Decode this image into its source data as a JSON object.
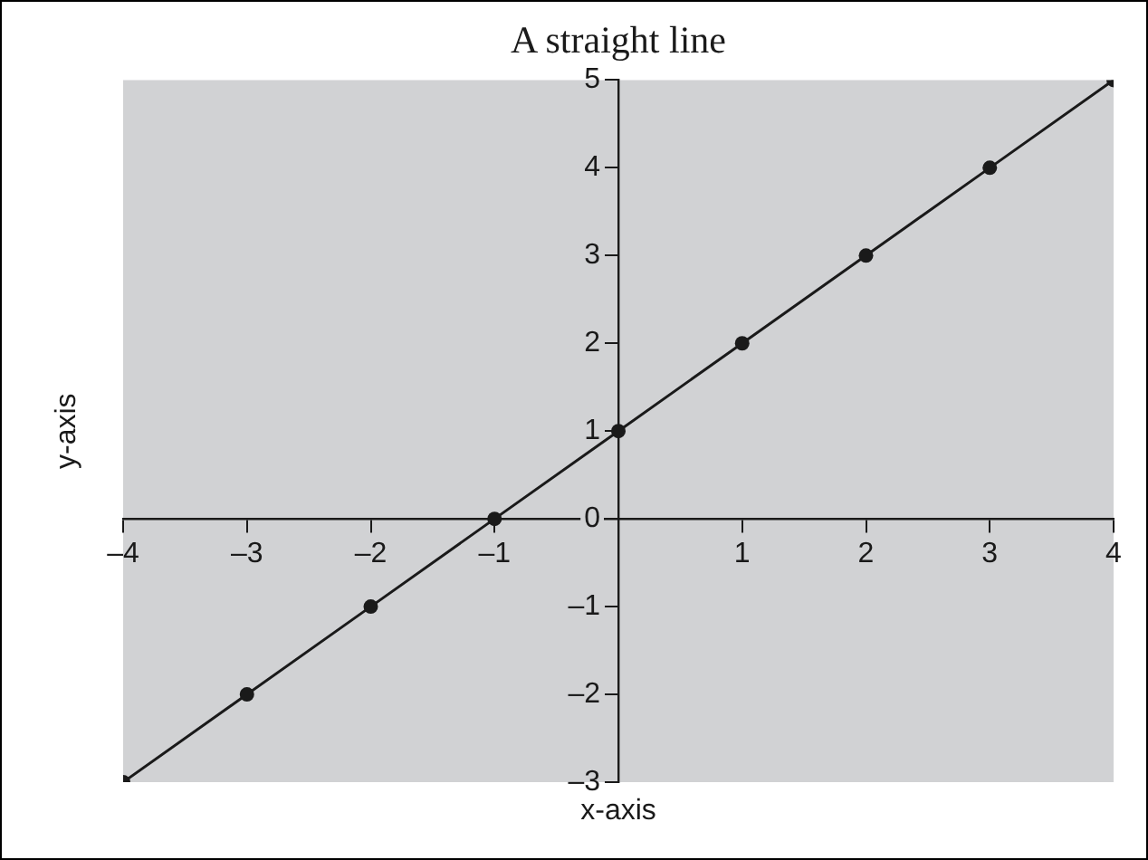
{
  "chart_data": {
    "type": "line",
    "title": "A straight line",
    "xlabel": "x-axis",
    "ylabel": "y-axis",
    "x": [
      -4,
      -3,
      -2,
      -1,
      0,
      1,
      2,
      3,
      4
    ],
    "series": [
      {
        "color": "#1a1a1a",
        "values": [
          -3,
          -2,
          -1,
          0,
          1,
          2,
          3,
          4,
          5
        ]
      }
    ],
    "xlim": [
      -4,
      4
    ],
    "ylim": [
      -3,
      5
    ],
    "xticks": [
      {
        "value": -4,
        "label": "–4"
      },
      {
        "value": -3,
        "label": "–3"
      },
      {
        "value": -2,
        "label": "–2"
      },
      {
        "value": -1,
        "label": "–1"
      },
      {
        "value": 0,
        "label": null
      },
      1,
      2,
      3,
      4
    ],
    "yticks": [
      {
        "value": -3,
        "label": "–3"
      },
      {
        "value": -2,
        "label": "–2"
      },
      {
        "value": -1,
        "label": "–1"
      },
      0,
      1,
      2,
      3,
      4,
      5
    ],
    "marker": "circle",
    "line_style": "solid",
    "grid": false,
    "legend": false
  }
}
